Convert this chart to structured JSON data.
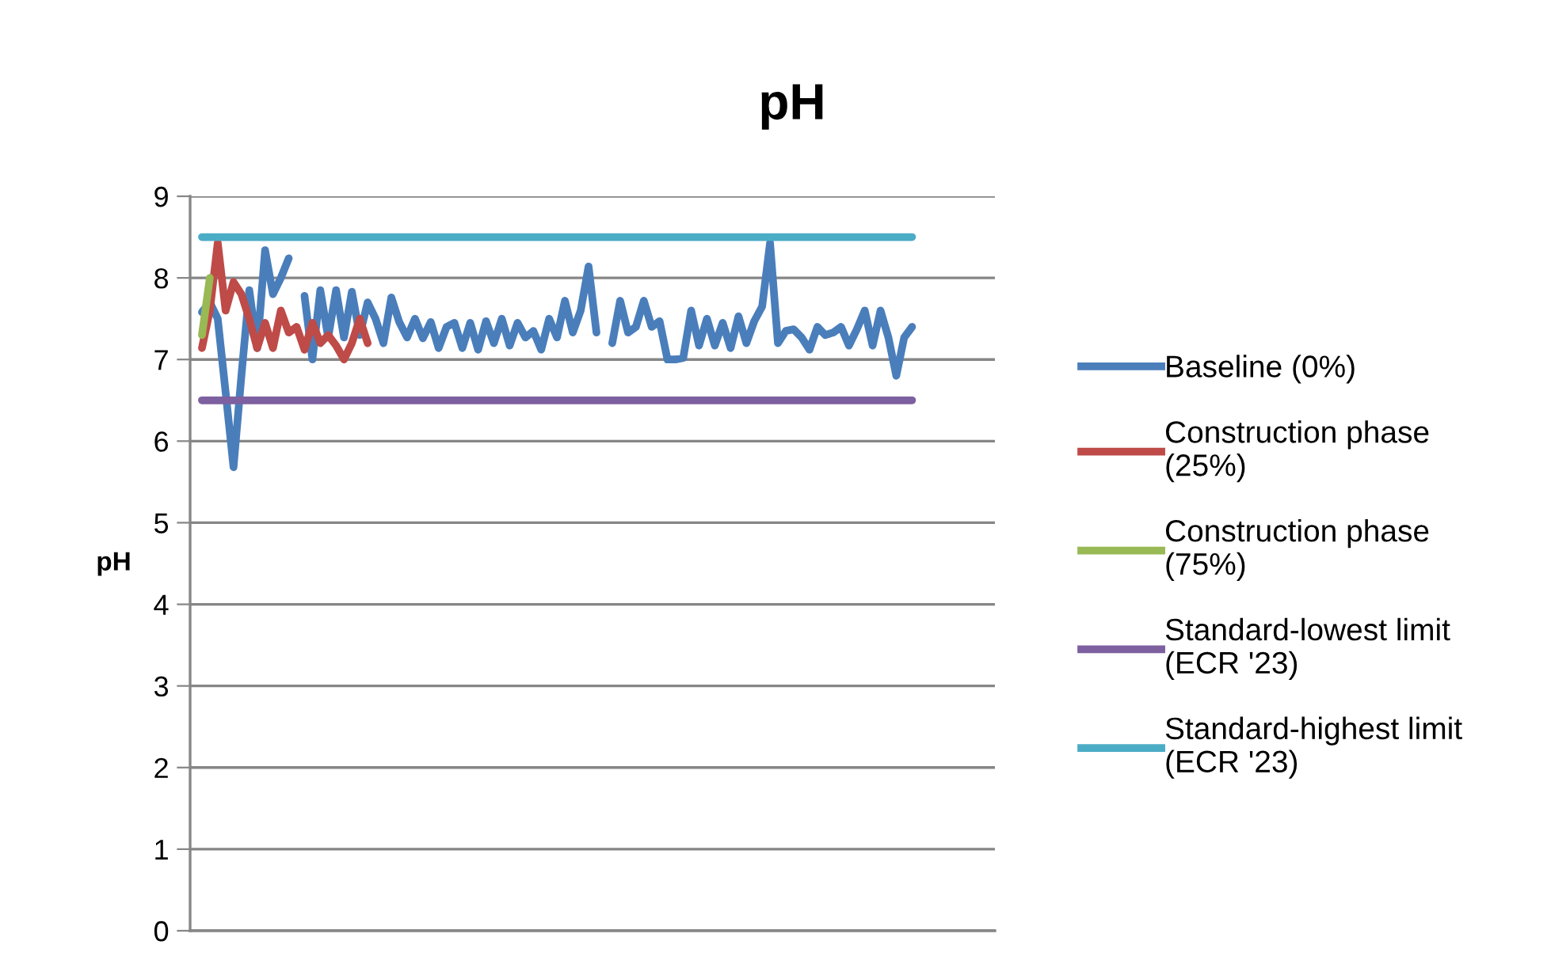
{
  "chart_data": {
    "type": "line",
    "title": "pH",
    "ylabel": "pH",
    "categories": [
      null,
      null,
      null,
      null,
      null,
      null,
      null,
      null,
      null,
      null,
      null,
      null,
      null,
      null,
      null,
      null,
      null,
      null,
      null,
      null,
      null,
      null,
      null,
      null,
      null,
      null,
      null,
      null,
      null,
      null,
      null,
      null,
      null,
      null,
      null,
      null,
      null,
      null,
      null,
      null,
      null,
      null,
      null,
      null,
      null,
      null,
      null,
      null,
      null,
      null,
      null,
      null,
      null,
      null,
      null,
      null,
      null,
      null,
      null,
      null,
      null,
      null,
      null,
      null,
      null,
      null,
      null,
      null,
      null,
      null,
      null,
      null,
      null,
      null,
      null,
      null,
      null,
      null,
      null,
      null,
      null,
      null,
      null,
      null,
      null,
      null,
      null,
      null,
      null,
      null,
      null,
      null,
      null,
      null,
      null,
      null,
      null,
      null,
      null,
      null,
      null,
      null
    ],
    "series": [
      {
        "name": "Baseline (0%)",
        "color": "#4a7ebb",
        "values": [
          null,
          7.58,
          7.7,
          7.5,
          6.6,
          5.68,
          6.8,
          7.85,
          7.14,
          8.34,
          7.8,
          8.0,
          8.24,
          null,
          7.78,
          7.0,
          7.85,
          7.27,
          7.85,
          7.27,
          7.83,
          7.3,
          7.7,
          7.5,
          7.2,
          7.76,
          7.46,
          7.27,
          7.5,
          7.26,
          7.46,
          7.14,
          7.4,
          7.45,
          7.14,
          7.45,
          7.12,
          7.47,
          7.2,
          7.5,
          7.17,
          7.45,
          7.27,
          7.35,
          7.12,
          7.5,
          7.27,
          7.72,
          7.33,
          7.6,
          8.14,
          7.33,
          null,
          7.2,
          7.72,
          7.33,
          7.4,
          7.72,
          7.4,
          7.47,
          7.0,
          7.0,
          7.02,
          7.6,
          7.17,
          7.5,
          7.17,
          7.45,
          7.14,
          7.53,
          7.2,
          7.47,
          7.65,
          8.43,
          7.2,
          7.35,
          7.37,
          7.27,
          7.12,
          7.4,
          7.3,
          7.33,
          7.4,
          7.17,
          7.37,
          7.6,
          7.17,
          7.6,
          7.27,
          6.8,
          7.27,
          7.4,
          null,
          null,
          null,
          null,
          null,
          null,
          null,
          null,
          null,
          null
        ]
      },
      {
        "name": "Construction phase (25%)",
        "color": "#be4b48",
        "values": [
          null,
          7.14,
          7.6,
          8.43,
          7.6,
          7.95,
          7.8,
          7.5,
          7.14,
          7.45,
          7.14,
          7.6,
          7.33,
          7.4,
          7.12,
          7.45,
          7.2,
          7.3,
          7.17,
          7.0,
          7.2,
          7.5,
          7.2,
          null,
          null,
          null,
          null,
          null,
          null,
          null,
          null,
          null,
          null,
          null,
          null,
          null,
          null,
          null,
          null,
          null,
          null,
          null,
          null,
          null,
          null,
          null,
          null,
          null,
          null,
          null,
          null,
          null,
          null,
          null,
          null,
          null,
          null,
          null,
          null,
          null,
          null,
          null,
          null,
          null,
          null,
          null,
          null,
          null,
          null,
          null,
          null,
          null,
          null,
          null,
          null,
          null,
          null,
          null,
          null,
          null,
          null,
          null,
          null,
          null,
          null,
          null,
          null,
          null,
          null,
          null,
          null,
          null,
          null,
          null,
          null,
          null,
          null,
          null,
          null,
          null,
          null,
          null
        ]
      },
      {
        "name": "Construction phase (75%)",
        "color": "#98b954",
        "values": [
          null,
          7.3,
          8.0,
          null,
          null,
          null,
          null,
          null,
          null,
          null,
          null,
          null,
          null,
          null,
          null,
          null,
          null,
          null,
          null,
          null,
          null,
          null,
          null,
          null,
          null,
          null,
          null,
          null,
          null,
          null,
          null,
          null,
          null,
          null,
          null,
          null,
          null,
          null,
          null,
          null,
          null,
          null,
          null,
          null,
          null,
          null,
          null,
          null,
          null,
          null,
          null,
          null,
          null,
          null,
          null,
          null,
          null,
          null,
          null,
          null,
          null,
          null,
          null,
          null,
          null,
          null,
          null,
          null,
          null,
          null,
          null,
          null,
          null,
          null,
          null,
          null,
          null,
          null,
          null,
          null,
          null,
          null,
          null,
          null,
          null,
          null,
          null,
          null,
          null,
          null,
          null,
          null,
          null,
          null,
          null,
          null,
          null,
          null,
          null,
          null,
          null,
          null
        ]
      },
      {
        "name": "Standard-lowest limit (ECR '23)",
        "color": "#7d60a0",
        "values": [
          null,
          6.5,
          6.5,
          6.5,
          6.5,
          6.5,
          6.5,
          6.5,
          6.5,
          6.5,
          6.5,
          6.5,
          6.5,
          6.5,
          6.5,
          6.5,
          6.5,
          6.5,
          6.5,
          6.5,
          6.5,
          6.5,
          6.5,
          6.5,
          6.5,
          6.5,
          6.5,
          6.5,
          6.5,
          6.5,
          6.5,
          6.5,
          6.5,
          6.5,
          6.5,
          6.5,
          6.5,
          6.5,
          6.5,
          6.5,
          6.5,
          6.5,
          6.5,
          6.5,
          6.5,
          6.5,
          6.5,
          6.5,
          6.5,
          6.5,
          6.5,
          6.5,
          6.5,
          6.5,
          6.5,
          6.5,
          6.5,
          6.5,
          6.5,
          6.5,
          6.5,
          6.5,
          6.5,
          6.5,
          6.5,
          6.5,
          6.5,
          6.5,
          6.5,
          6.5,
          6.5,
          6.5,
          6.5,
          6.5,
          6.5,
          6.5,
          6.5,
          6.5,
          6.5,
          6.5,
          6.5,
          6.5,
          6.5,
          6.5,
          6.5,
          6.5,
          6.5,
          6.5,
          6.5,
          6.5,
          6.5,
          6.5,
          null,
          null,
          null,
          null,
          null,
          null,
          null,
          null,
          null,
          null
        ]
      },
      {
        "name": "Standard-highest limit (ECR '23)",
        "color": "#4bacc6",
        "values": [
          null,
          8.5,
          8.5,
          8.5,
          8.5,
          8.5,
          8.5,
          8.5,
          8.5,
          8.5,
          8.5,
          8.5,
          8.5,
          8.5,
          8.5,
          8.5,
          8.5,
          8.5,
          8.5,
          8.5,
          8.5,
          8.5,
          8.5,
          8.5,
          8.5,
          8.5,
          8.5,
          8.5,
          8.5,
          8.5,
          8.5,
          8.5,
          8.5,
          8.5,
          8.5,
          8.5,
          8.5,
          8.5,
          8.5,
          8.5,
          8.5,
          8.5,
          8.5,
          8.5,
          8.5,
          8.5,
          8.5,
          8.5,
          8.5,
          8.5,
          8.5,
          8.5,
          8.5,
          8.5,
          8.5,
          8.5,
          8.5,
          8.5,
          8.5,
          8.5,
          8.5,
          8.5,
          8.5,
          8.5,
          8.5,
          8.5,
          8.5,
          8.5,
          8.5,
          8.5,
          8.5,
          8.5,
          8.5,
          8.5,
          8.5,
          8.5,
          8.5,
          8.5,
          8.5,
          8.5,
          8.5,
          8.5,
          8.5,
          8.5,
          8.5,
          8.5,
          8.5,
          8.5,
          8.5,
          8.5,
          8.5,
          8.5,
          null,
          null,
          null,
          null,
          null,
          null,
          null,
          null,
          null,
          null
        ]
      }
    ],
    "ylim": [
      0,
      9
    ],
    "yticks": [
      0,
      1,
      2,
      3,
      4,
      5,
      6,
      7,
      8,
      9
    ],
    "grid": "y",
    "legend": "right",
    "marker": "none",
    "line_style": "solid",
    "tick_labels": "y"
  }
}
